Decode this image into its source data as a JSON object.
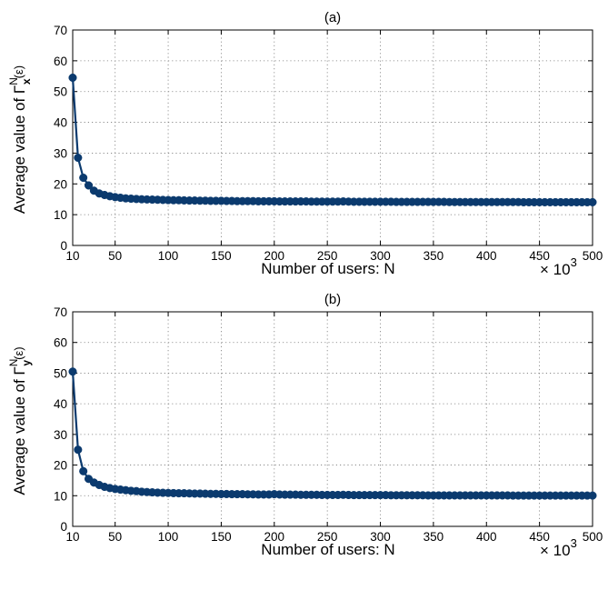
{
  "chart_data": [
    {
      "panel": "a",
      "type": "line",
      "title": "(a)",
      "xlabel": "Number of users: N",
      "x_multiplier": "× 10",
      "x_multiplier_exp": "3",
      "ylabel": {
        "prefix": "Average value of ",
        "symbol": "Γ",
        "sup": "N",
        "sub": "x",
        "arg": "(ε)"
      },
      "xlim": [
        10,
        500
      ],
      "ylim": [
        0,
        70
      ],
      "xticks": [
        10,
        50,
        100,
        150,
        200,
        250,
        300,
        350,
        400,
        450,
        500
      ],
      "yticks": [
        0,
        10,
        20,
        30,
        40,
        50,
        60,
        70
      ],
      "grid": true,
      "line_color": "#0b3a6e",
      "series": [
        {
          "x": [
            10,
            15,
            20,
            25,
            30,
            35,
            40,
            45,
            50,
            55,
            60,
            65,
            70,
            75,
            80,
            85,
            90,
            95,
            100,
            105,
            110,
            115,
            120,
            125,
            130,
            135,
            140,
            145,
            150,
            155,
            160,
            165,
            170,
            175,
            180,
            185,
            190,
            195,
            200,
            205,
            210,
            215,
            220,
            225,
            230,
            235,
            240,
            245,
            250,
            255,
            260,
            265,
            270,
            275,
            280,
            285,
            290,
            295,
            300,
            305,
            310,
            315,
            320,
            325,
            330,
            335,
            340,
            345,
            350,
            355,
            360,
            365,
            370,
            375,
            380,
            385,
            390,
            395,
            400,
            405,
            410,
            415,
            420,
            425,
            430,
            435,
            440,
            445,
            450,
            455,
            460,
            465,
            470,
            475,
            480,
            485,
            490,
            495,
            500
          ],
          "y": [
            54.5,
            28.5,
            22,
            19.5,
            17.8,
            16.9,
            16.4,
            16,
            15.7,
            15.5,
            15.3,
            15.2,
            15.1,
            15,
            14.95,
            14.9,
            14.85,
            14.8,
            14.75,
            14.7,
            14.7,
            14.65,
            14.6,
            14.6,
            14.55,
            14.55,
            14.5,
            14.5,
            14.5,
            14.45,
            14.45,
            14.4,
            14.4,
            14.4,
            14.4,
            14.35,
            14.35,
            14.35,
            14.35,
            14.3,
            14.3,
            14.3,
            14.3,
            14.3,
            14.3,
            14.25,
            14.25,
            14.25,
            14.25,
            14.25,
            14.25,
            14.3,
            14.25,
            14.2,
            14.2,
            14.2,
            14.2,
            14.2,
            14.2,
            14.2,
            14.2,
            14.15,
            14.15,
            14.15,
            14.15,
            14.15,
            14.15,
            14.15,
            14.15,
            14.15,
            14.15,
            14.1,
            14.1,
            14.1,
            14.1,
            14.1,
            14.1,
            14.1,
            14.1,
            14.1,
            14.1,
            14.1,
            14.1,
            14.1,
            14.1,
            14.05,
            14.05,
            14.05,
            14.05,
            14.05,
            14.05,
            14.05,
            14.05,
            14.05,
            14.05,
            14.05,
            14.05,
            14.05,
            14.05
          ]
        }
      ]
    },
    {
      "panel": "b",
      "type": "line",
      "title": "(b)",
      "xlabel": "Number of users: N",
      "x_multiplier": "× 10",
      "x_multiplier_exp": "3",
      "ylabel": {
        "prefix": "Average value of ",
        "symbol": "Γ",
        "sup": "N",
        "sub": "y",
        "arg": "(ε)"
      },
      "xlim": [
        10,
        500
      ],
      "ylim": [
        0,
        70
      ],
      "xticks": [
        10,
        50,
        100,
        150,
        200,
        250,
        300,
        350,
        400,
        450,
        500
      ],
      "yticks": [
        0,
        10,
        20,
        30,
        40,
        50,
        60,
        70
      ],
      "grid": true,
      "line_color": "#0b3a6e",
      "series": [
        {
          "x": [
            10,
            15,
            20,
            25,
            30,
            35,
            40,
            45,
            50,
            55,
            60,
            65,
            70,
            75,
            80,
            85,
            90,
            95,
            100,
            105,
            110,
            115,
            120,
            125,
            130,
            135,
            140,
            145,
            150,
            155,
            160,
            165,
            170,
            175,
            180,
            185,
            190,
            195,
            200,
            205,
            210,
            215,
            220,
            225,
            230,
            235,
            240,
            245,
            250,
            255,
            260,
            265,
            270,
            275,
            280,
            285,
            290,
            295,
            300,
            305,
            310,
            315,
            320,
            325,
            330,
            335,
            340,
            345,
            350,
            355,
            360,
            365,
            370,
            375,
            380,
            385,
            390,
            395,
            400,
            405,
            410,
            415,
            420,
            425,
            430,
            435,
            440,
            445,
            450,
            455,
            460,
            465,
            470,
            475,
            480,
            485,
            490,
            495,
            500
          ],
          "y": [
            50.5,
            25,
            18,
            15.5,
            14.3,
            13.5,
            12.9,
            12.5,
            12.2,
            12,
            11.8,
            11.6,
            11.5,
            11.3,
            11.2,
            11.1,
            11,
            10.95,
            10.9,
            10.85,
            10.8,
            10.8,
            10.75,
            10.7,
            10.7,
            10.65,
            10.6,
            10.6,
            10.55,
            10.55,
            10.5,
            10.5,
            10.5,
            10.45,
            10.45,
            10.4,
            10.4,
            10.4,
            10.5,
            10.4,
            10.35,
            10.35,
            10.35,
            10.3,
            10.3,
            10.3,
            10.3,
            10.25,
            10.25,
            10.25,
            10.25,
            10.3,
            10.25,
            10.2,
            10.2,
            10.2,
            10.2,
            10.2,
            10.2,
            10.2,
            10.15,
            10.15,
            10.15,
            10.15,
            10.15,
            10.15,
            10.15,
            10.1,
            10.1,
            10.1,
            10.1,
            10.1,
            10.1,
            10.1,
            10.1,
            10.1,
            10.1,
            10.1,
            10.1,
            10.1,
            10.1,
            10.1,
            10.1,
            10.05,
            10.05,
            10.05,
            10.05,
            10.05,
            10.05,
            10.05,
            10.05,
            10.05,
            10.05,
            10.05,
            10.05,
            10.05,
            10.05,
            10.05,
            10.05
          ]
        }
      ]
    }
  ]
}
